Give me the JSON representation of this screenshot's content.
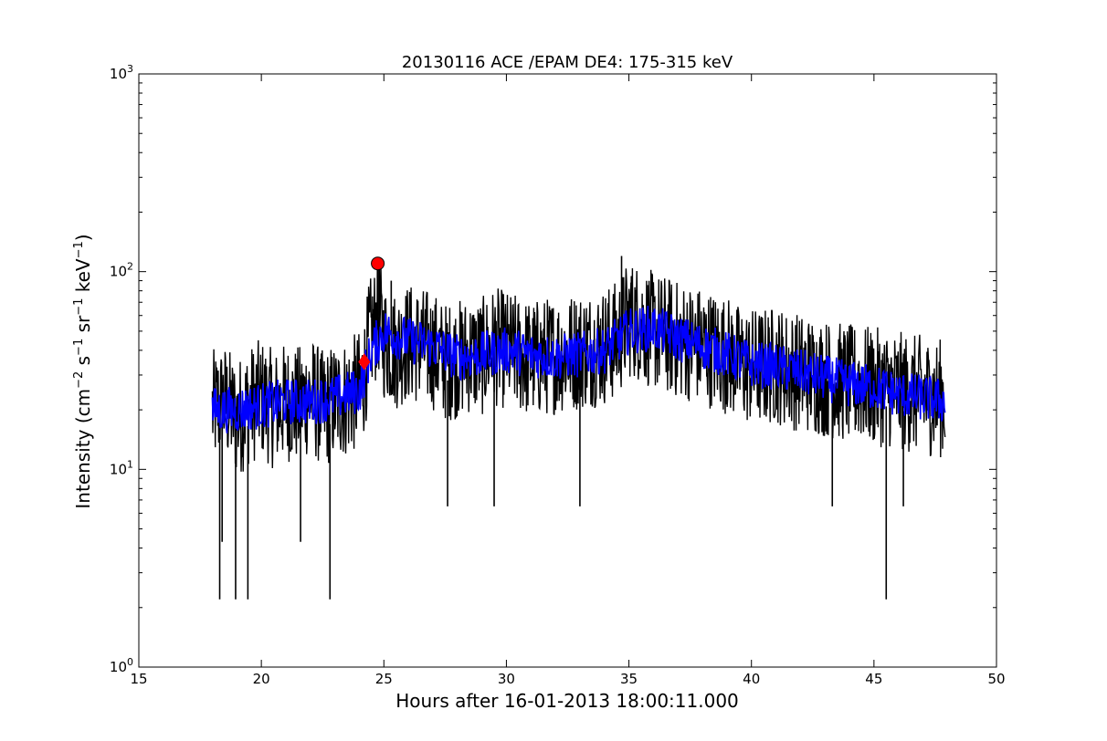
{
  "chart_data": {
    "type": "line",
    "title": "20130116 ACE /EPAM DE4: 175-315 keV",
    "xlabel": "Hours after 16-01-2013 18:00:11.000",
    "ylabel": "Intensity (cm",
    "ylabel_parts": [
      "Intensity (cm",
      "−2",
      " s",
      "−1",
      " sr",
      "−1",
      " keV",
      "−1",
      ")"
    ],
    "xlim": [
      15,
      50
    ],
    "ylim": [
      1,
      1000
    ],
    "yscale": "log",
    "grid": false,
    "x_ticks": [
      15,
      20,
      25,
      30,
      35,
      40,
      45,
      50
    ],
    "x_tick_labels": [
      "15",
      "20",
      "25",
      "30",
      "35",
      "40",
      "45",
      "50"
    ],
    "y_ticks": [
      1,
      10,
      100,
      1000
    ],
    "y_tick_labels": [
      {
        "base": "10",
        "exp": "0"
      },
      {
        "base": "10",
        "exp": "1"
      },
      {
        "base": "10",
        "exp": "2"
      },
      {
        "base": "10",
        "exp": "3"
      }
    ],
    "colors": {
      "raw": "#000000",
      "smoothed": "#0000ff",
      "marker": "#ff0000"
    },
    "series": [
      {
        "role": "raw",
        "x": [
          18.0,
          18.5,
          19.0,
          19.5,
          20.0,
          20.5,
          21.0,
          21.5,
          22.0,
          22.5,
          23.0,
          23.5,
          24.0,
          24.2,
          24.4,
          24.6,
          24.8,
          25.0,
          25.5,
          26.0,
          26.5,
          27.0,
          27.5,
          28.0,
          28.5,
          29.0,
          29.5,
          30.0,
          30.5,
          31.0,
          31.5,
          32.0,
          32.5,
          33.0,
          33.5,
          34.0,
          34.5,
          35.0,
          35.5,
          36.0,
          36.5,
          37.0,
          37.5,
          38.0,
          38.5,
          39.0,
          39.5,
          40.0,
          40.5,
          41.0,
          41.5,
          42.0,
          42.5,
          43.0,
          43.5,
          44.0,
          44.5,
          45.0,
          45.5,
          46.0,
          46.5,
          47.0,
          47.5,
          47.9
        ],
        "y": [
          20,
          22,
          18,
          21,
          23,
          20,
          22,
          21,
          24,
          20,
          22,
          23,
          25,
          30,
          45,
          52,
          60,
          45,
          40,
          44,
          42,
          40,
          35,
          36,
          38,
          37,
          42,
          40,
          38,
          36,
          37,
          38,
          39,
          40,
          41,
          42,
          45,
          58,
          55,
          50,
          48,
          45,
          44,
          42,
          40,
          38,
          34,
          33,
          33,
          34,
          32,
          31,
          30,
          29,
          28,
          27,
          27,
          26,
          26,
          25,
          24,
          24,
          23,
          23
        ]
      },
      {
        "role": "smoothed",
        "x": [
          18.0,
          19.0,
          20.0,
          21.0,
          22.0,
          23.0,
          24.0,
          24.5,
          25.0,
          26.0,
          27.0,
          28.0,
          29.0,
          30.0,
          31.0,
          32.0,
          33.0,
          34.0,
          35.0,
          36.0,
          37.0,
          38.0,
          39.0,
          40.0,
          41.0,
          42.0,
          43.0,
          44.0,
          45.0,
          46.0,
          47.0,
          47.9
        ],
        "y": [
          20,
          20,
          21,
          22,
          22,
          23,
          25,
          40,
          50,
          45,
          42,
          37,
          38,
          40,
          38,
          37,
          38,
          40,
          50,
          52,
          46,
          42,
          38,
          34,
          33,
          31,
          29,
          27,
          26,
          24,
          23,
          22
        ]
      }
    ],
    "dip_marks": [
      {
        "x": 18.3,
        "y": 2.2
      },
      {
        "x": 18.4,
        "y": 4.3
      },
      {
        "x": 18.95,
        "y": 2.2
      },
      {
        "x": 19.45,
        "y": 2.2
      },
      {
        "x": 21.6,
        "y": 4.3
      },
      {
        "x": 22.8,
        "y": 2.2
      },
      {
        "x": 27.6,
        "y": 6.5
      },
      {
        "x": 29.5,
        "y": 6.5
      },
      {
        "x": 33.0,
        "y": 6.5
      },
      {
        "x": 43.3,
        "y": 6.5
      },
      {
        "x": 45.5,
        "y": 2.2
      },
      {
        "x": 46.2,
        "y": 6.5
      }
    ],
    "spike_marks": [
      {
        "x": 24.8,
        "y": 105
      },
      {
        "x": 34.7,
        "y": 120
      },
      {
        "x": 25.3,
        "y": 90
      },
      {
        "x": 35.1,
        "y": 95
      }
    ],
    "markers": [
      {
        "shape": "diamond",
        "x": 24.2,
        "y": 35
      },
      {
        "shape": "circle",
        "x": 24.75,
        "y": 110
      }
    ]
  }
}
